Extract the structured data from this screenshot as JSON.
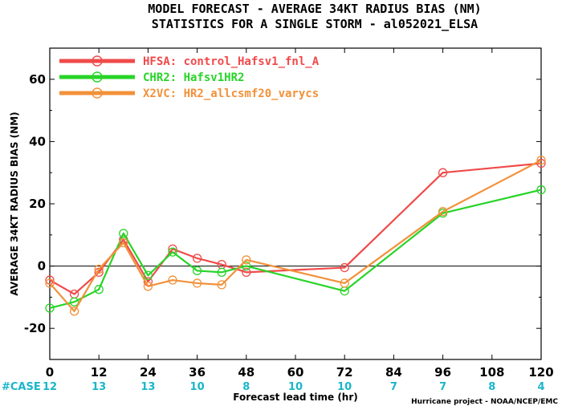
{
  "chart_data": {
    "type": "line",
    "title": "MODEL FORECAST - AVERAGE 34KT RADIUS BIAS (NM)",
    "subtitle": "STATISTICS FOR A SINGLE STORM - al052021_ELSA",
    "xlabel": "Forecast lead time (hr)",
    "ylabel": "AVERAGE 34KT RADIUS BIAS (NM)",
    "xlim": [
      0,
      120
    ],
    "ylim": [
      -30,
      70
    ],
    "xticks": [
      0,
      12,
      24,
      36,
      48,
      60,
      72,
      84,
      96,
      108,
      120
    ],
    "yticks": [
      -20,
      0,
      20,
      40,
      60
    ],
    "reference_line": 0,
    "legend_position": "top-left",
    "case_label": "#CASE",
    "cases": [
      {
        "x": 0,
        "n": "12"
      },
      {
        "x": 12,
        "n": "13"
      },
      {
        "x": 24,
        "n": "13"
      },
      {
        "x": 36,
        "n": "10"
      },
      {
        "x": 48,
        "n": "8"
      },
      {
        "x": 60,
        "n": "10"
      },
      {
        "x": 72,
        "n": "10"
      },
      {
        "x": 84,
        "n": "7"
      },
      {
        "x": 96,
        "n": "7"
      },
      {
        "x": 108,
        "n": "8"
      },
      {
        "x": 120,
        "n": "4"
      }
    ],
    "series": [
      {
        "name": "HFSA: control_Hafsv1_fnl_A",
        "color": "#f04a4a",
        "x": [
          0,
          6,
          12,
          18,
          24,
          30,
          36,
          42,
          48,
          72,
          96,
          120
        ],
        "y": [
          -4.5,
          -9,
          -2,
          8.5,
          -5,
          5.5,
          2.5,
          0.5,
          -2,
          -0.5,
          30,
          33
        ]
      },
      {
        "name": "CHR2: Hafsv1HR2",
        "color": "#28d428",
        "x": [
          0,
          6,
          12,
          18,
          24,
          30,
          36,
          42,
          48,
          72,
          96,
          120
        ],
        "y": [
          -13.5,
          -11.5,
          -7.5,
          10.5,
          -3,
          4.5,
          -1.5,
          -2,
          0,
          -8,
          17,
          24.5
        ]
      },
      {
        "name": "X2VC: HR2_allcsmf20_varycs",
        "color": "#f2913a",
        "x": [
          0,
          6,
          12,
          18,
          24,
          30,
          36,
          42,
          48,
          72,
          96,
          120
        ],
        "y": [
          -5.5,
          -14.5,
          -1,
          7.5,
          -6.5,
          -4.5,
          -5.5,
          -6,
          2,
          -5.5,
          17.5,
          34
        ]
      }
    ]
  },
  "credit": "Hurricane project - NOAA/NCEP/EMC"
}
